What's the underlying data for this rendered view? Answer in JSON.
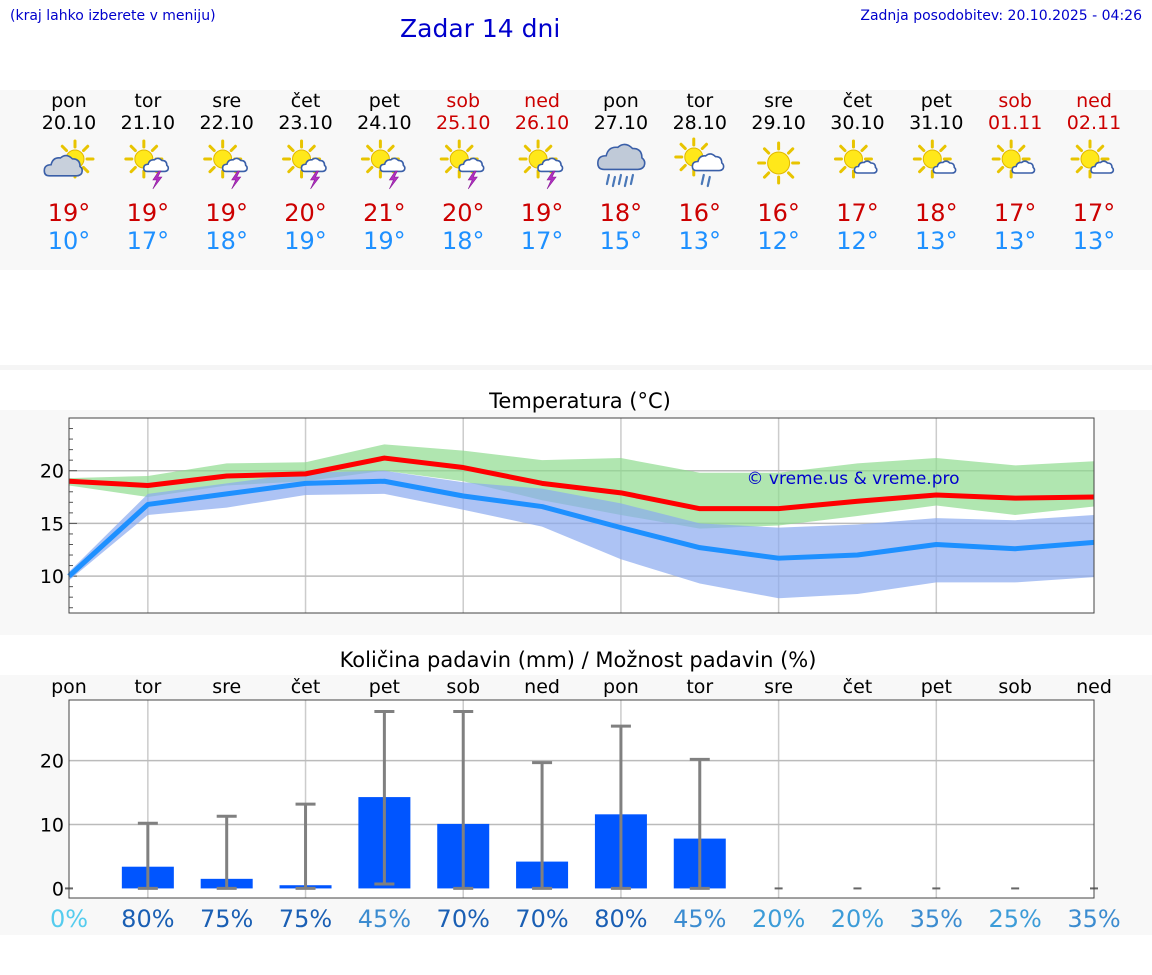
{
  "header": {
    "hint": "(kraj lahko izberete v meniju)",
    "title": "Zadar 14 dni",
    "updated": "Zadnja posodobitev: 20.10.2025 - 04:26"
  },
  "colors": {
    "weekday": "#000000",
    "weekend": "#cc0000",
    "tmax": "#cc0000",
    "tmin": "#1e90ff",
    "title": "#0000cc",
    "bar": "#0055ff",
    "line_max": "#ff0000",
    "line_min": "#1e90ff",
    "band_max": "#8fdc8f",
    "band_min": "#8aaaf0",
    "whisker": "#808080"
  },
  "days": [
    {
      "name": "pon",
      "date": "20.10",
      "weekend": false,
      "icon": "sun-cloud-icon",
      "tmax": "19°",
      "tmin": "10°"
    },
    {
      "name": "tor",
      "date": "21.10",
      "weekend": false,
      "icon": "sun-thunder-icon",
      "tmax": "19°",
      "tmin": "17°"
    },
    {
      "name": "sre",
      "date": "22.10",
      "weekend": false,
      "icon": "sun-thunder-icon",
      "tmax": "19°",
      "tmin": "18°"
    },
    {
      "name": "čet",
      "date": "23.10",
      "weekend": false,
      "icon": "sun-thunder-icon",
      "tmax": "20°",
      "tmin": "19°"
    },
    {
      "name": "pet",
      "date": "24.10",
      "weekend": false,
      "icon": "sun-thunder-icon",
      "tmax": "21°",
      "tmin": "19°"
    },
    {
      "name": "sob",
      "date": "25.10",
      "weekend": true,
      "icon": "sun-thunder-icon",
      "tmax": "20°",
      "tmin": "18°"
    },
    {
      "name": "ned",
      "date": "26.10",
      "weekend": true,
      "icon": "sun-thunder-icon",
      "tmax": "19°",
      "tmin": "17°"
    },
    {
      "name": "pon",
      "date": "27.10",
      "weekend": false,
      "icon": "cloud-rain-icon",
      "tmax": "18°",
      "tmin": "15°"
    },
    {
      "name": "tor",
      "date": "28.10",
      "weekend": false,
      "icon": "sun-rain-icon",
      "tmax": "16°",
      "tmin": "13°"
    },
    {
      "name": "sre",
      "date": "29.10",
      "weekend": false,
      "icon": "sun-icon",
      "tmax": "16°",
      "tmin": "12°"
    },
    {
      "name": "čet",
      "date": "30.10",
      "weekend": false,
      "icon": "sun-small-cloud-icon",
      "tmax": "17°",
      "tmin": "12°"
    },
    {
      "name": "pet",
      "date": "31.10",
      "weekend": false,
      "icon": "sun-small-cloud-icon",
      "tmax": "18°",
      "tmin": "13°"
    },
    {
      "name": "sob",
      "date": "01.11",
      "weekend": true,
      "icon": "sun-small-cloud-icon",
      "tmax": "17°",
      "tmin": "13°"
    },
    {
      "name": "ned",
      "date": "02.11",
      "weekend": true,
      "icon": "sun-small-cloud-icon",
      "tmax": "17°",
      "tmin": "13°"
    }
  ],
  "chart_data": [
    {
      "type": "line",
      "title": "Temperatura (°C)",
      "watermark": "© vreme.us & vreme.pro",
      "ylim": [
        6.5,
        25
      ],
      "yticks": [
        10,
        15,
        20
      ],
      "grid": true,
      "series": [
        {
          "values": [
            19.0,
            18.6,
            19.5,
            19.7,
            21.2,
            20.3,
            18.8,
            17.9,
            16.4,
            16.4,
            17.1,
            17.7,
            17.4,
            17.5
          ],
          "band": {
            "low": [
              18.6,
              17.5,
              18.6,
              19.0,
              20.0,
              19.0,
              17.2,
              15.8,
              14.5,
              14.8,
              15.7,
              16.7,
              15.8,
              16.6
            ],
            "high": [
              19.3,
              19.5,
              20.7,
              20.8,
              22.5,
              21.9,
              21.0,
              21.2,
              19.8,
              19.8,
              20.7,
              21.2,
              20.5,
              20.9
            ]
          }
        },
        {
          "values": [
            10.0,
            16.8,
            17.8,
            18.8,
            19.0,
            17.6,
            16.6,
            14.6,
            12.7,
            11.7,
            12.0,
            13.0,
            12.6,
            13.2
          ],
          "band": {
            "low": [
              9.6,
              15.8,
              16.5,
              17.7,
              17.8,
              16.3,
              14.7,
              11.6,
              9.3,
              7.9,
              8.3,
              9.4,
              9.4,
              9.9
            ],
            "high": [
              10.4,
              17.8,
              18.8,
              19.8,
              20.0,
              18.9,
              18.3,
              16.9,
              15.0,
              14.6,
              14.9,
              15.5,
              15.3,
              15.8
            ]
          }
        }
      ]
    },
    {
      "type": "bar",
      "title": "Količina padavin (mm) / Možnost padavin (%)",
      "categories": [
        "pon",
        "tor",
        "sre",
        "čet",
        "pet",
        "sob",
        "ned",
        "pon",
        "tor",
        "sre",
        "čet",
        "pet",
        "sob",
        "ned"
      ],
      "values": [
        0,
        3.4,
        1.5,
        0.5,
        14.3,
        10.1,
        4.2,
        11.6,
        7.8,
        0,
        0,
        0,
        0,
        0
      ],
      "error_low": [
        0,
        0,
        0,
        0,
        0.7,
        0,
        0,
        0,
        0,
        0,
        0,
        0,
        0,
        0
      ],
      "error_high": [
        0,
        10.2,
        11.3,
        13.2,
        27.7,
        27.7,
        19.7,
        25.4,
        20.2,
        0,
        0,
        0,
        0,
        0
      ],
      "probabilities": [
        "0%",
        "80%",
        "75%",
        "75%",
        "45%",
        "70%",
        "70%",
        "80%",
        "45%",
        "20%",
        "20%",
        "35%",
        "25%",
        "35%"
      ],
      "probability_colors": [
        "#55ccee",
        "#1a5fb4",
        "#1a5fb4",
        "#1a5fb4",
        "#3c8cd0",
        "#1a5fb4",
        "#1a5fb4",
        "#1a5fb4",
        "#3c8cd0",
        "#3c9cd8",
        "#3c9cd8",
        "#3c8cd0",
        "#3c9cd8",
        "#3c8cd0"
      ],
      "ylim": [
        -1.5,
        29.5
      ],
      "yticks": [
        0,
        10,
        20
      ],
      "grid": true
    }
  ]
}
